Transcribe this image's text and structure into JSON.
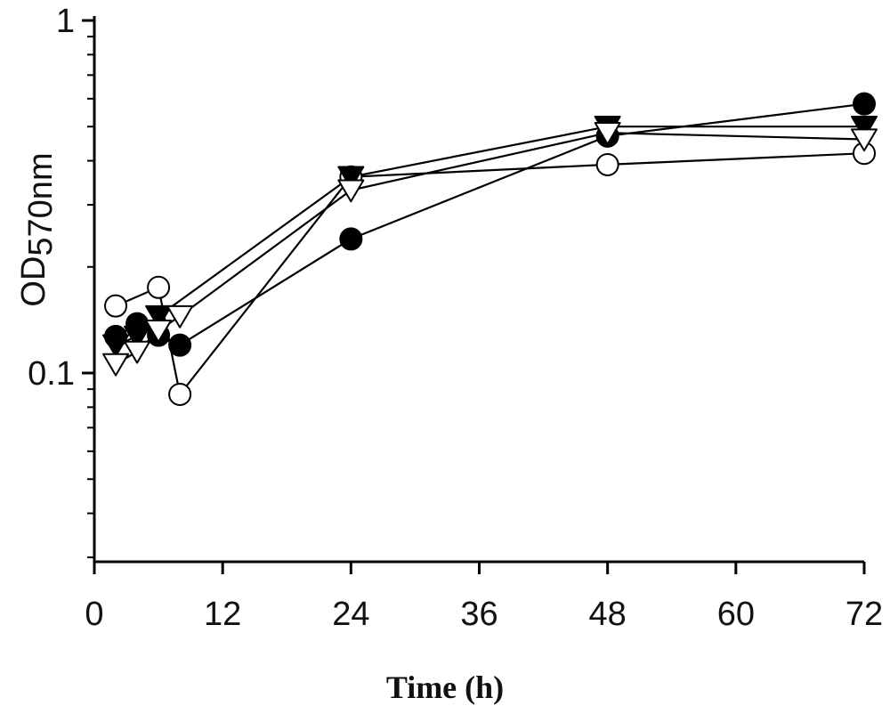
{
  "chart_data": {
    "type": "line",
    "x_axis": {
      "label": "Time (h)",
      "ticks": [
        0,
        12,
        24,
        36,
        48,
        60,
        72
      ],
      "range": [
        0,
        72
      ]
    },
    "y_axis": {
      "label_main": "OD",
      "label_sub": "570nm",
      "scale": "log",
      "range": [
        0.03,
        1
      ],
      "ticks": [
        {
          "value": 0.1,
          "label": "0.1"
        },
        {
          "value": 1,
          "label": "1"
        }
      ],
      "minor_ticks": [
        0.03,
        0.04,
        0.05,
        0.06,
        0.07,
        0.08,
        0.09,
        0.2,
        0.3,
        0.4,
        0.5,
        0.6,
        0.7,
        0.8,
        0.9
      ]
    },
    "grid": false,
    "series": [
      {
        "marker": "circle-open",
        "color": "#000000",
        "points": [
          [
            2,
            0.155
          ],
          [
            6,
            0.175
          ],
          [
            8,
            0.087
          ],
          [
            24,
            0.36
          ],
          [
            48,
            0.39
          ],
          [
            72,
            0.42
          ]
        ]
      },
      {
        "marker": "circle-filled",
        "color": "#000000",
        "points": [
          [
            2,
            0.127
          ],
          [
            4,
            0.138
          ],
          [
            6,
            0.128
          ],
          [
            8,
            0.12
          ],
          [
            24,
            0.24
          ],
          [
            48,
            0.47
          ],
          [
            72,
            0.58
          ]
        ]
      },
      {
        "marker": "triangle-down-filled",
        "color": "#000000",
        "points": [
          [
            2,
            0.12
          ],
          [
            4,
            0.127
          ],
          [
            6,
            0.145
          ],
          [
            24,
            0.36
          ],
          [
            48,
            0.5
          ],
          [
            72,
            0.5
          ]
        ]
      },
      {
        "marker": "triangle-down-open",
        "color": "#000000",
        "points": [
          [
            2,
            0.106
          ],
          [
            4,
            0.115
          ],
          [
            6,
            0.132
          ],
          [
            8,
            0.145
          ],
          [
            24,
            0.33
          ],
          [
            48,
            0.48
          ],
          [
            72,
            0.46
          ]
        ]
      }
    ]
  }
}
